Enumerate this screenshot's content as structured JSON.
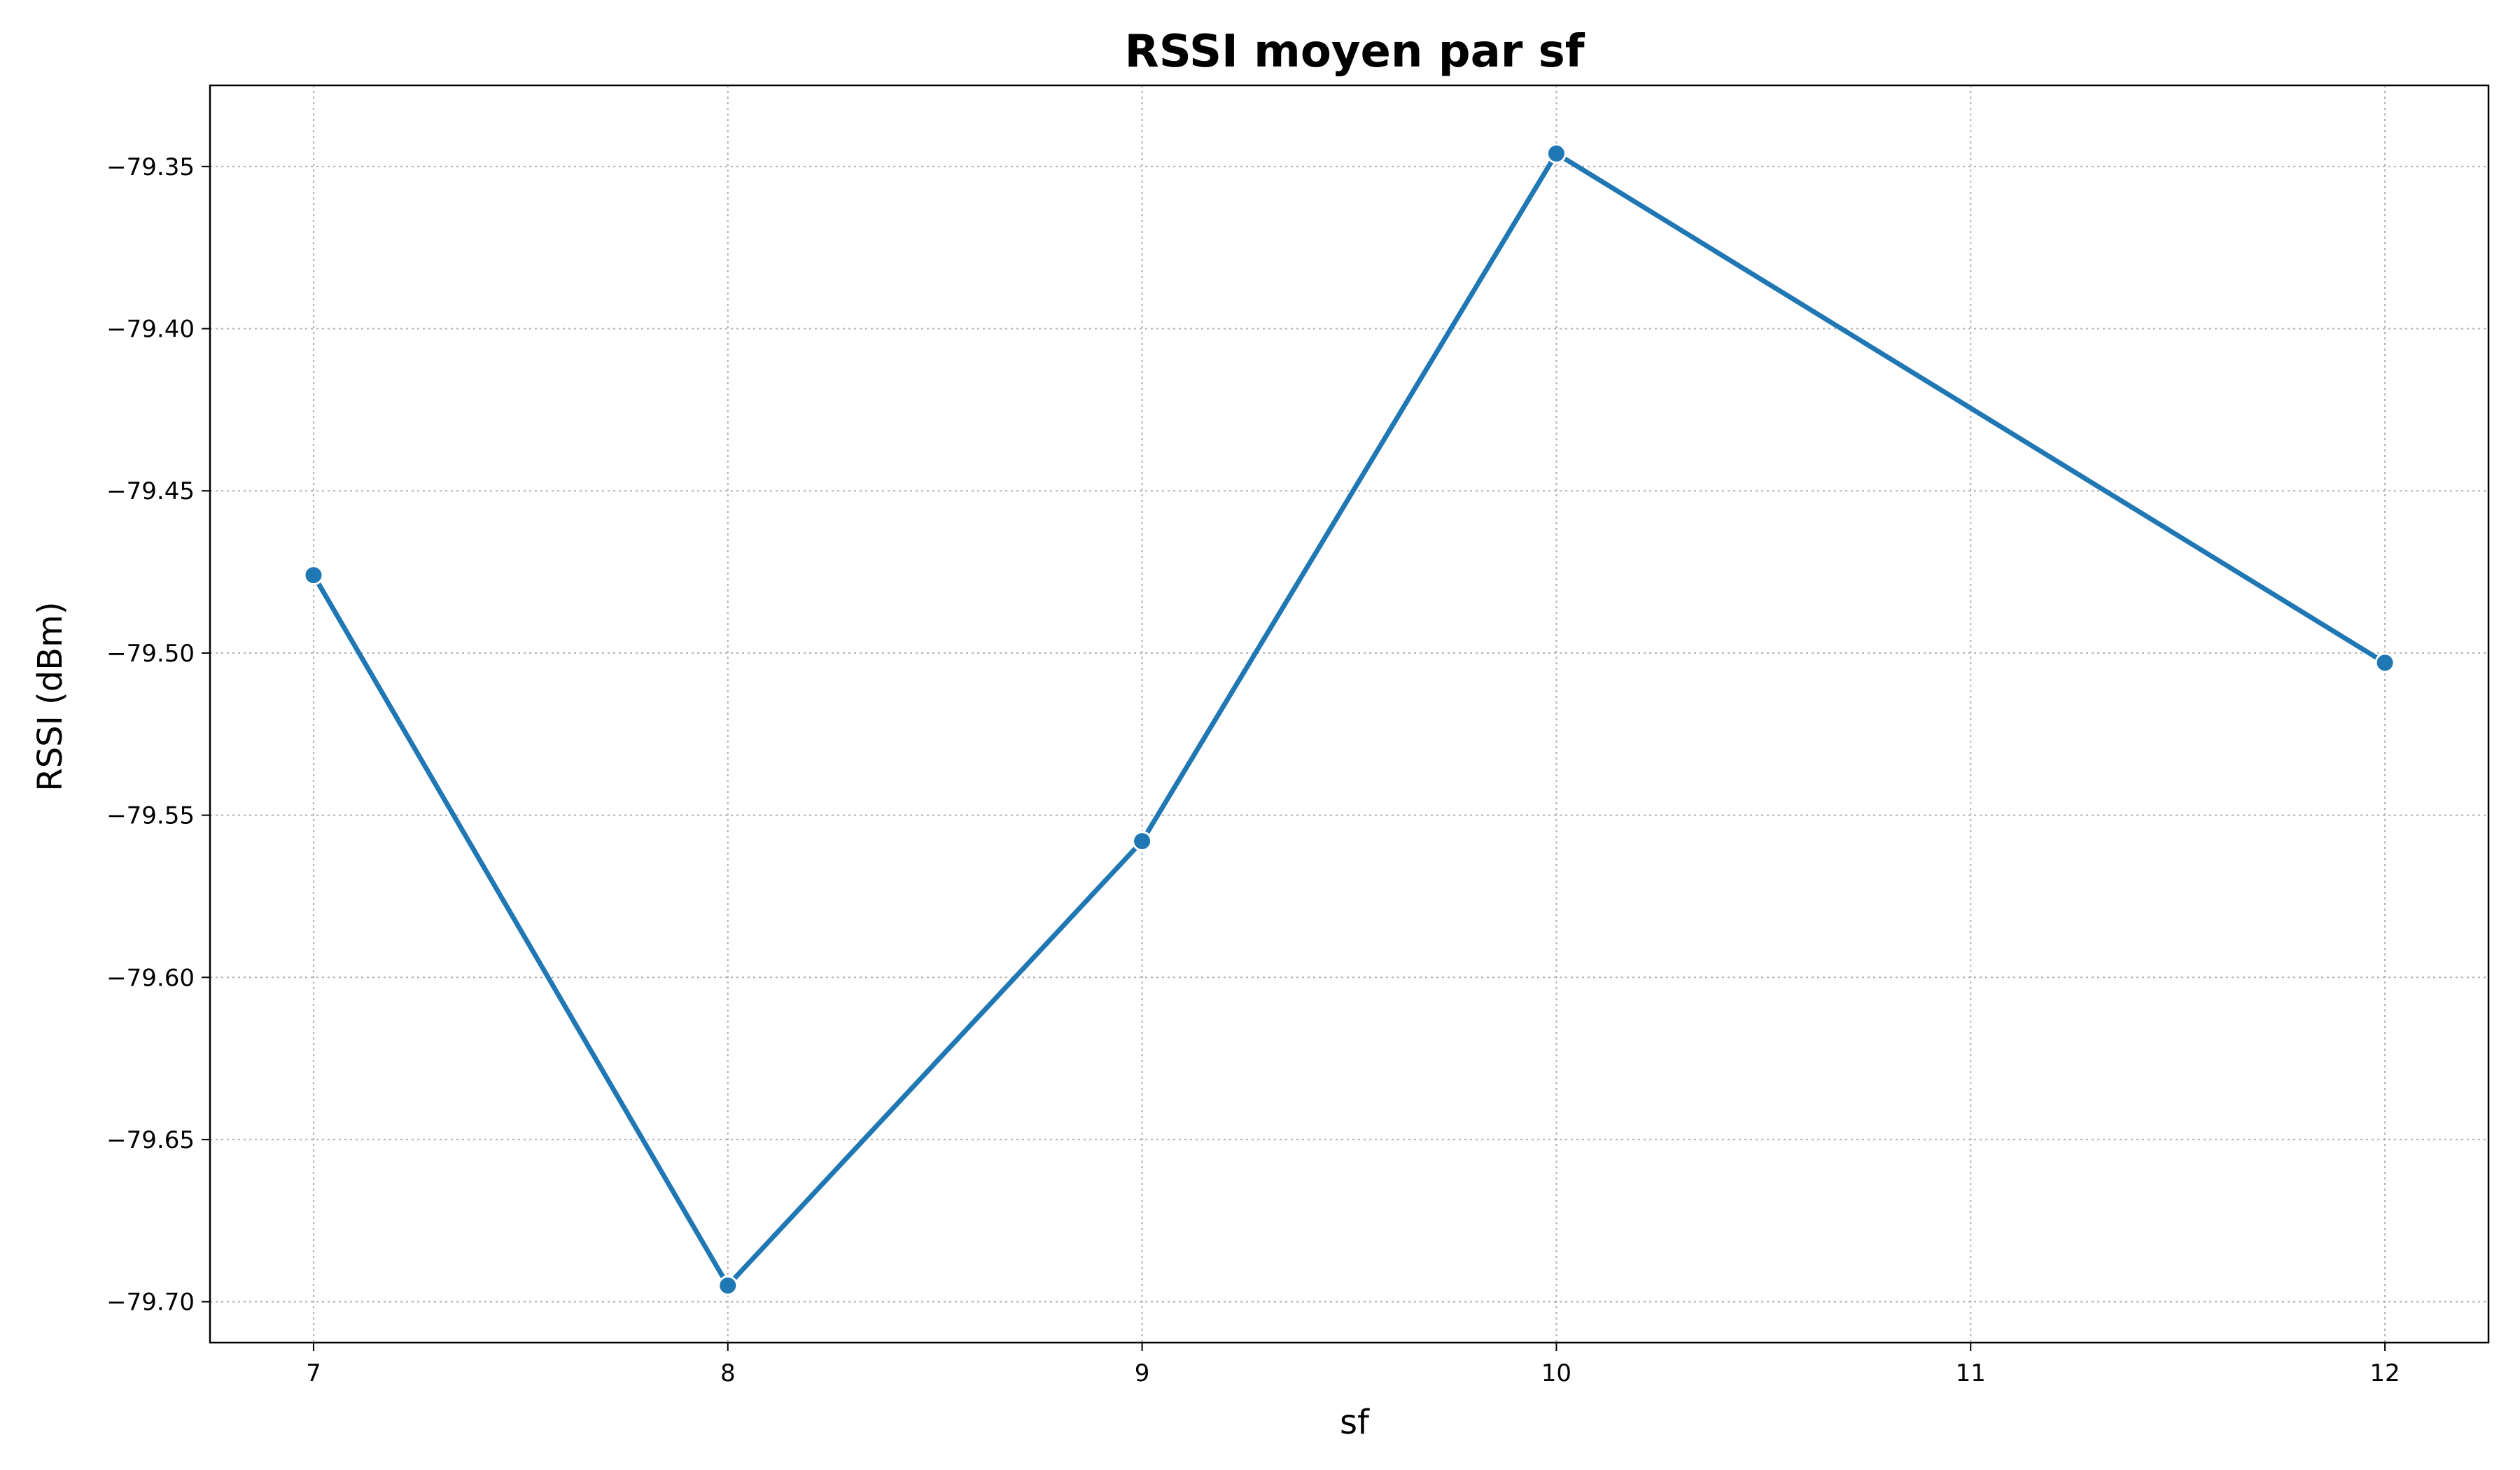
{
  "chart_data": {
    "type": "line",
    "title": "RSSI moyen par sf",
    "xlabel": "sf",
    "ylabel": "RSSI (dBm)",
    "x": [
      7,
      8,
      9,
      10,
      12
    ],
    "series": [
      {
        "values": [
          -79.476,
          -79.695,
          -79.558,
          -79.346,
          -79.503
        ],
        "color": "#1f77b4"
      }
    ],
    "xticks": [
      7,
      8,
      9,
      10,
      11,
      12
    ],
    "yticks": [
      -79.35,
      -79.4,
      -79.45,
      -79.5,
      -79.55,
      -79.6,
      -79.65,
      -79.7
    ],
    "ytick_labels": [
      "−79.35",
      "−79.40",
      "−79.45",
      "−79.50",
      "−79.55",
      "−79.60",
      "−79.65",
      "−79.70"
    ],
    "xlim": [
      6.75,
      12.25
    ],
    "ylim": [
      -79.7126,
      -79.325
    ],
    "grid": true,
    "grid_style": "dotted"
  }
}
